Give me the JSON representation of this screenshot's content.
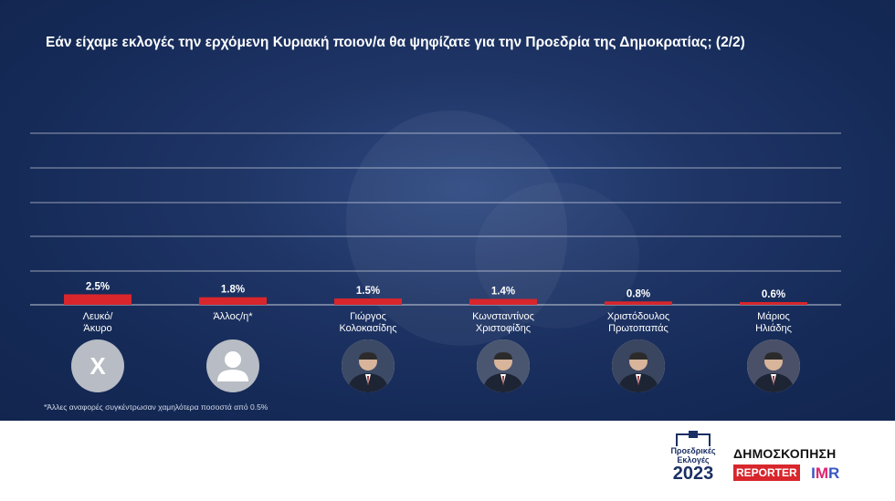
{
  "title": "Εάν είχαμε εκλογές την ερχόμενη Κυριακή ποιον/α θα ψηφίζατε για την Προεδρία της Δημοκρατίας; (2/2)",
  "chart_data": {
    "type": "bar",
    "categories": [
      [
        "Λευκό/",
        "Άκυρο"
      ],
      [
        "Άλλος/η*"
      ],
      [
        "Γιώργος",
        "Κολοκασίδης"
      ],
      [
        "Κωνσταντίνος",
        "Χριστοφίδης"
      ],
      [
        "Χριστόδουλος",
        "Πρωτοπαπάς"
      ],
      [
        "Μάριος",
        "Ηλιάδης"
      ]
    ],
    "values": [
      2.5,
      1.8,
      1.5,
      1.4,
      0.8,
      0.6
    ],
    "value_labels": [
      "2.5%",
      "1.8%",
      "1.5%",
      "1.4%",
      "0.8%",
      "0.6%"
    ],
    "grid": true,
    "bar_color": "#d8262c"
  },
  "avatars": [
    {
      "type": "x-icon",
      "text": "X"
    },
    {
      "type": "person-icon"
    },
    {
      "type": "photo"
    },
    {
      "type": "photo"
    },
    {
      "type": "photo"
    },
    {
      "type": "photo"
    }
  ],
  "footnote": "*Άλλες αναφορές συγκέντρωσαν χαμηλότερα ποσοστά από 0.5%",
  "footer": {
    "logo_line1": "Προεδρικές",
    "logo_line2": "Εκλογές",
    "logo_year": "2023",
    "poll_title": "ΔΗΜΟΣΚΟΠΗΣΗ",
    "reporter": "REPORTER",
    "imr_i": "I",
    "imr_m": "M",
    "imr_r": "R"
  }
}
